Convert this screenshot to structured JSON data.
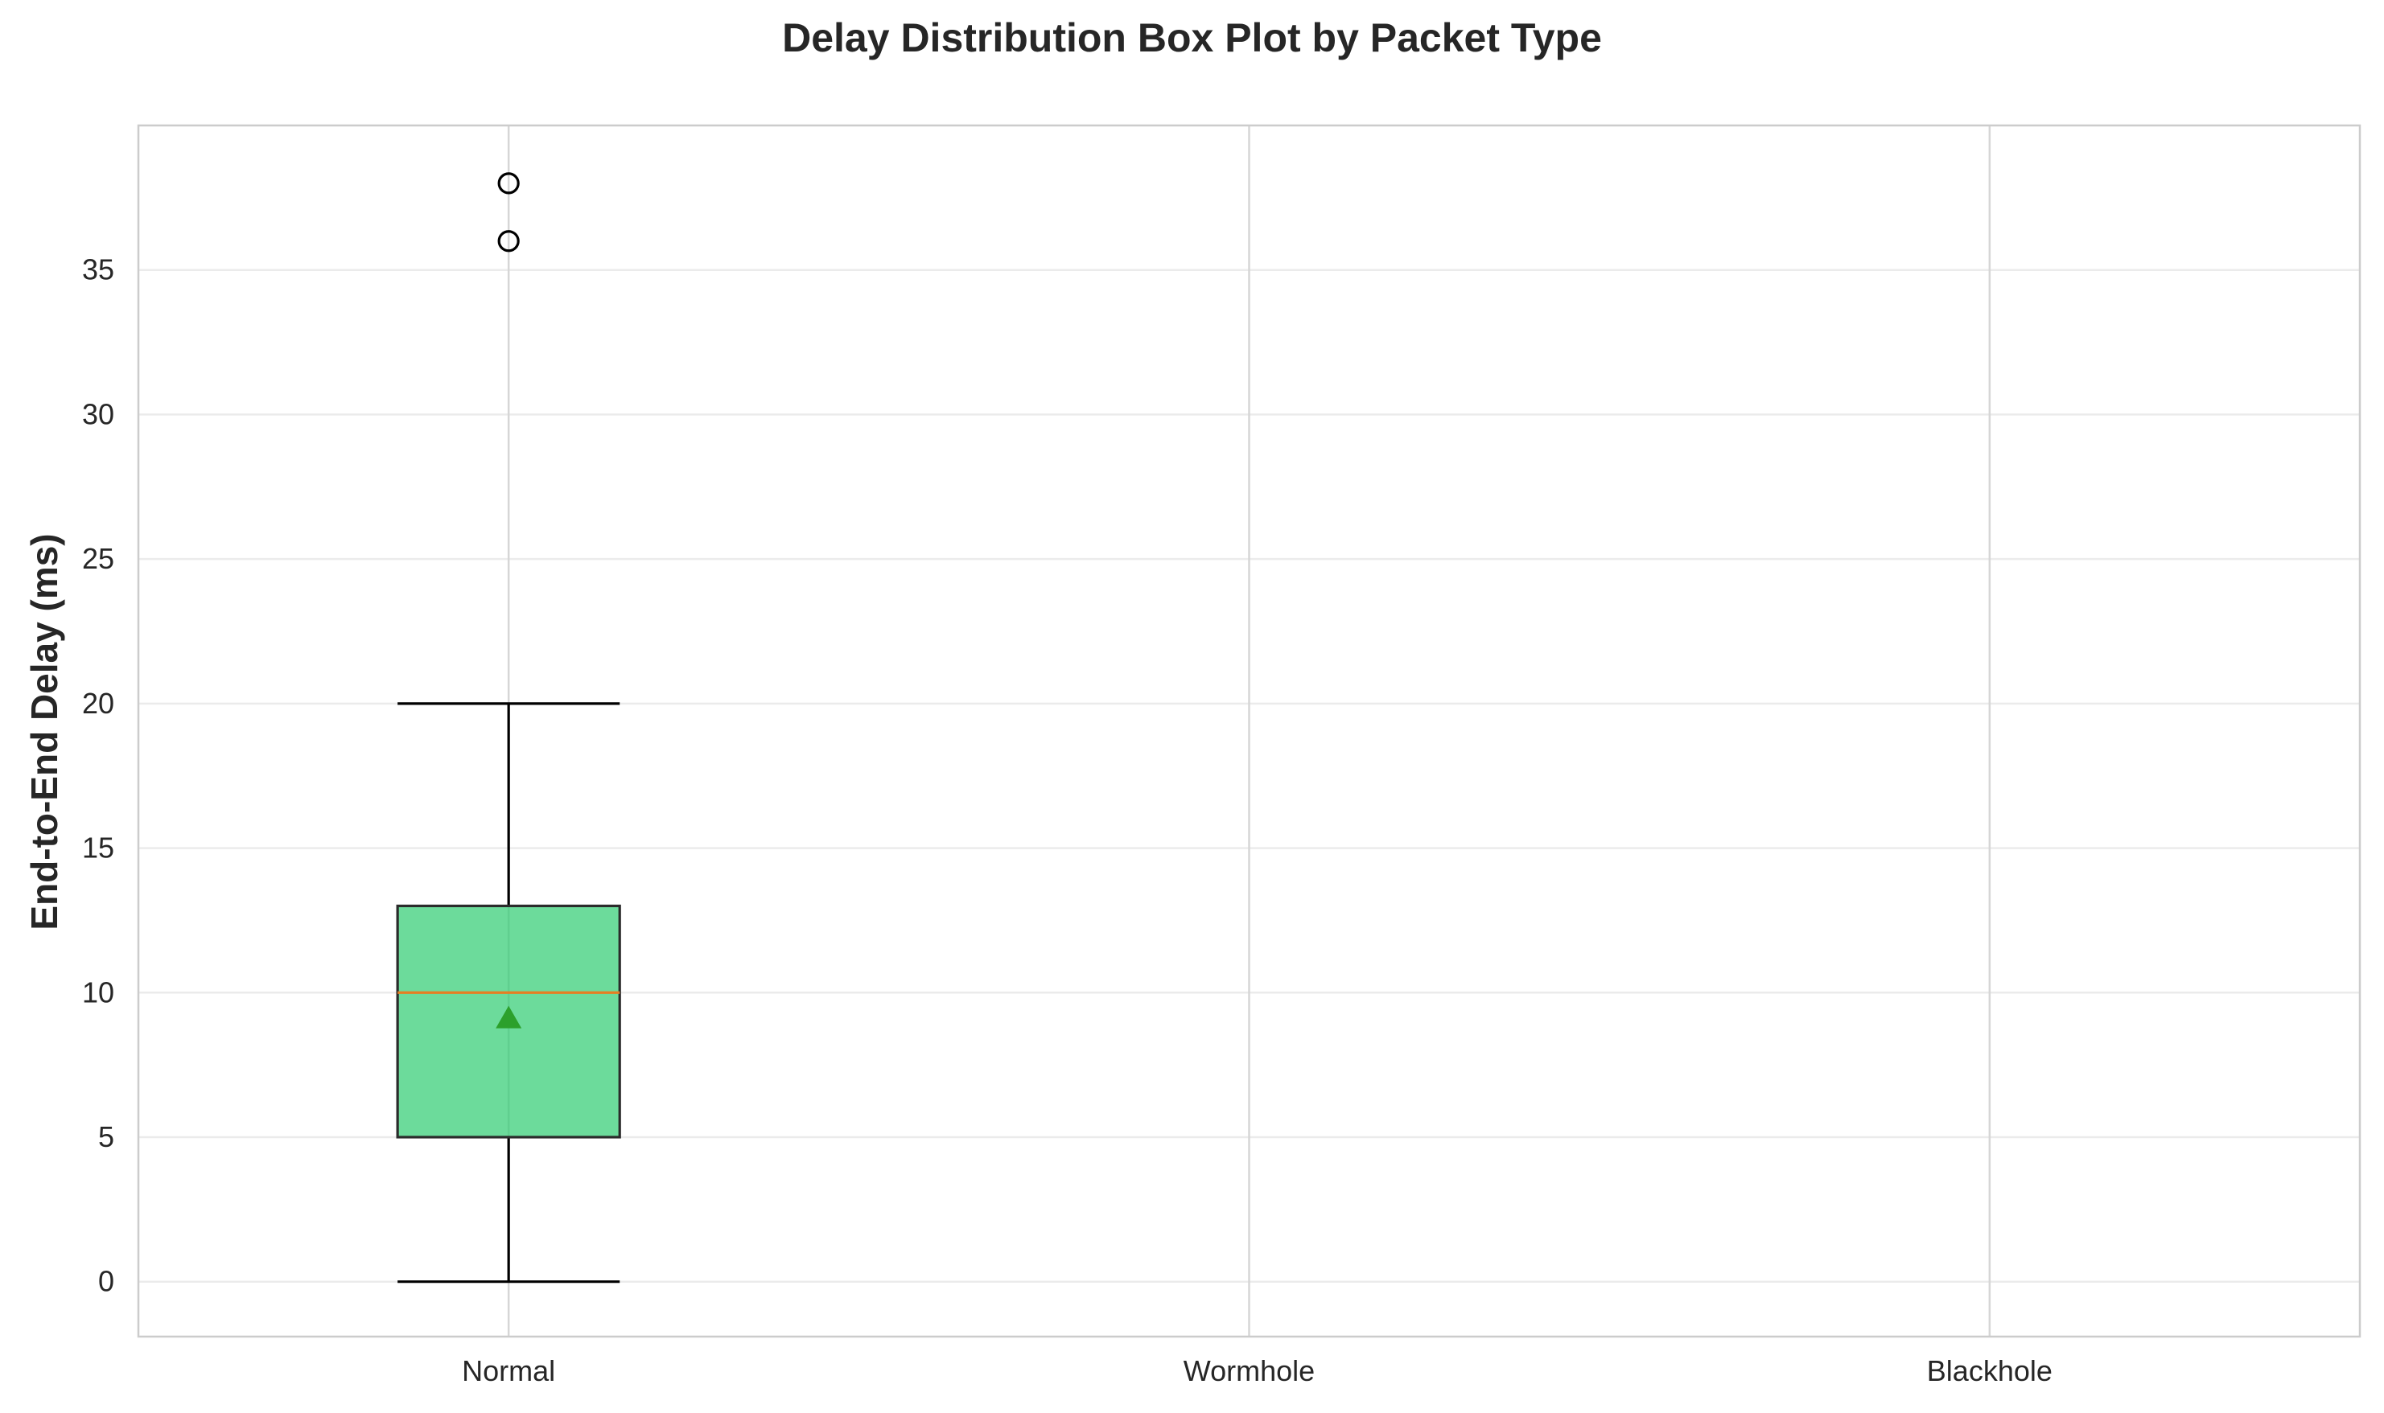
{
  "chart_data": {
    "type": "box",
    "title": "Delay Distribution Box Plot by Packet Type",
    "xlabel": "",
    "ylabel": "End-to-End Delay (ms)",
    "categories": [
      "Normal",
      "Wormhole",
      "Blackhole"
    ],
    "ylim": [
      -1.9,
      40.0
    ],
    "yticks": [
      0,
      5,
      10,
      15,
      20,
      25,
      30,
      35
    ],
    "grid": true,
    "boxes": [
      {
        "category": "Normal",
        "whisker_low": 0,
        "q1": 5,
        "median": 10,
        "q3": 13,
        "whisker_high": 20,
        "mean": 9.1,
        "outliers": [
          36,
          38
        ]
      },
      {
        "category": "Wormhole",
        "whisker_low": null,
        "q1": null,
        "median": null,
        "q3": null,
        "whisker_high": null,
        "mean": null,
        "outliers": []
      },
      {
        "category": "Blackhole",
        "whisker_low": null,
        "q1": null,
        "median": null,
        "q3": null,
        "whisker_high": null,
        "mean": null,
        "outliers": []
      }
    ],
    "colors": {
      "box_fill": "#2ecc71",
      "box_edge": "#2b2b2b",
      "median": "#e67e22",
      "mean_marker": "#2ca02c",
      "grid": "#ebebeb",
      "spine": "#cccccc",
      "whisker": "#000000"
    }
  }
}
